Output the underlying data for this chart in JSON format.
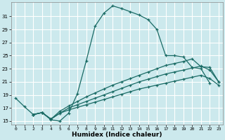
{
  "bg_color": "#cce9ed",
  "grid_color": "#b8d8dc",
  "line_color": "#1a6b65",
  "xlim": [
    -0.5,
    23.5
  ],
  "ylim": [
    14.5,
    33.2
  ],
  "xticks": [
    0,
    1,
    2,
    3,
    4,
    5,
    6,
    7,
    8,
    9,
    10,
    11,
    12,
    13,
    14,
    15,
    16,
    17,
    18,
    19,
    20,
    21,
    22,
    23
  ],
  "yticks": [
    15,
    17,
    19,
    21,
    23,
    25,
    27,
    29,
    31
  ],
  "xlabel": "Humidex (Indice chaleur)",
  "curve1_x": [
    0,
    1,
    2,
    3,
    4,
    5,
    6,
    7,
    8,
    9,
    10,
    11,
    12,
    13,
    14,
    15,
    16,
    17,
    18,
    19,
    20,
    21,
    22
  ],
  "curve1_y": [
    18.5,
    17.2,
    16.0,
    16.3,
    15.2,
    15.0,
    16.2,
    19.2,
    24.2,
    29.5,
    31.5,
    32.6,
    32.2,
    31.7,
    31.2,
    30.5,
    29.0,
    25.0,
    25.0,
    24.8,
    23.2,
    23.0,
    20.8
  ],
  "curve2_x": [
    2,
    3,
    4,
    5,
    6,
    7,
    8,
    9,
    10,
    11,
    12,
    13,
    14,
    15,
    16,
    17,
    18,
    19,
    20,
    21,
    22,
    23
  ],
  "curve2_y": [
    16.0,
    16.3,
    15.3,
    16.2,
    16.7,
    17.1,
    17.5,
    17.9,
    18.3,
    18.7,
    19.1,
    19.5,
    19.9,
    20.2,
    20.5,
    20.8,
    21.1,
    21.4,
    21.7,
    22.0,
    21.5,
    20.5
  ],
  "curve3_x": [
    2,
    3,
    4,
    5,
    6,
    7,
    8,
    9,
    10,
    11,
    12,
    13,
    14,
    15,
    16,
    17,
    18,
    19,
    20,
    21,
    22,
    23
  ],
  "curve3_y": [
    16.0,
    16.3,
    15.3,
    16.2,
    17.0,
    17.5,
    18.0,
    18.5,
    19.0,
    19.5,
    20.0,
    20.5,
    21.0,
    21.4,
    21.8,
    22.2,
    22.5,
    22.8,
    23.1,
    23.4,
    22.8,
    21.0
  ],
  "curve4_x": [
    2,
    3,
    4,
    5,
    6,
    7,
    8,
    9,
    10,
    11,
    12,
    13,
    14,
    15,
    16,
    17,
    18,
    19,
    20,
    21,
    22,
    23
  ],
  "curve4_y": [
    16.0,
    16.3,
    15.3,
    16.5,
    17.3,
    18.0,
    18.7,
    19.3,
    19.9,
    20.5,
    21.0,
    21.5,
    22.0,
    22.5,
    23.0,
    23.5,
    23.8,
    24.1,
    24.5,
    23.3,
    23.2,
    21.0
  ]
}
